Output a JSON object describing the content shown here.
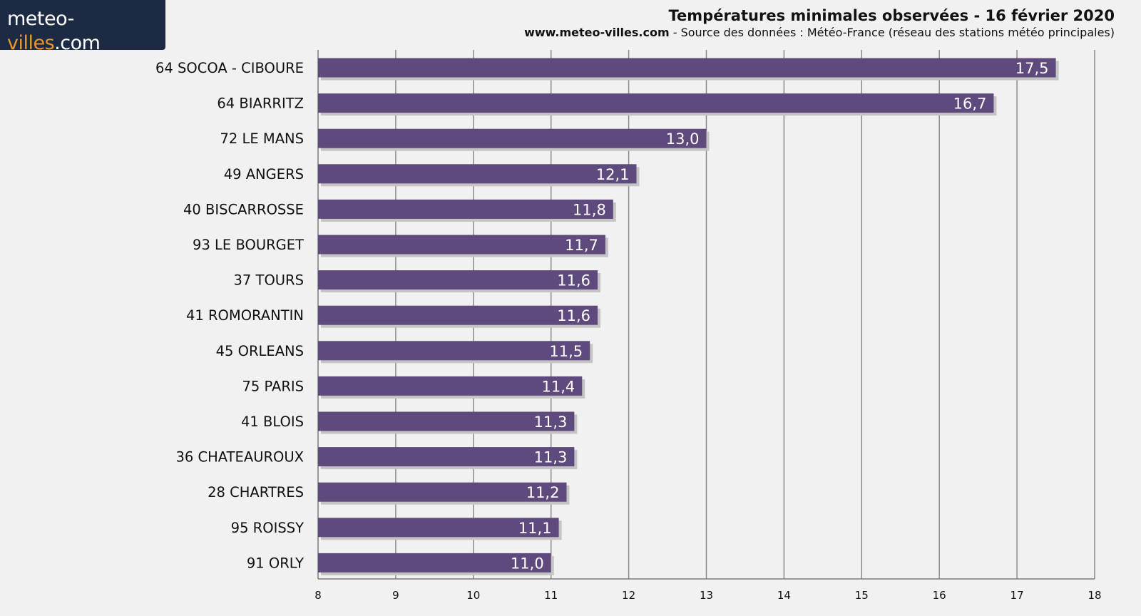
{
  "logo": {
    "part1": "meteo-",
    "part2": "villes",
    "part3": ".com"
  },
  "header": {
    "title": "Températures minimales observées - 16 février 2020",
    "site": "www.meteo-villes.com",
    "source": " - Source des données : Météo-France (réseau des stations météo principales)"
  },
  "colors": {
    "bar": "#5f4a7e",
    "bar_shadow": "#c4c4c4",
    "background": "#f1f1f1",
    "grid": "#8a8a8a",
    "logo_bg": "#1c2a44",
    "logo_accent": "#e8962a"
  },
  "chart_data": {
    "type": "bar",
    "orientation": "horizontal",
    "categories": [
      "64 SOCOA - CIBOURE",
      "64 BIARRITZ",
      "72 LE MANS",
      "49 ANGERS",
      "40 BISCARROSSE",
      "93 LE BOURGET",
      "37 TOURS",
      "41 ROMORANTIN",
      "45 ORLEANS",
      "75 PARIS",
      "41 BLOIS",
      "36 CHATEAUROUX",
      "28 CHARTRES",
      "95 ROISSY",
      "91 ORLY"
    ],
    "values": [
      17.5,
      16.7,
      13.0,
      12.1,
      11.8,
      11.7,
      11.6,
      11.6,
      11.5,
      11.4,
      11.3,
      11.3,
      11.2,
      11.1,
      11.0
    ],
    "value_labels": [
      "17,5",
      "16,7",
      "13,0",
      "12,1",
      "11,8",
      "11,7",
      "11,6",
      "11,6",
      "11,5",
      "11,4",
      "11,3",
      "11,3",
      "11,2",
      "11,1",
      "11,0"
    ],
    "xlim": [
      8,
      18
    ],
    "xticks": [
      8,
      9,
      10,
      11,
      12,
      13,
      14,
      15,
      16,
      17,
      18
    ],
    "grid": true,
    "legend": false
  }
}
